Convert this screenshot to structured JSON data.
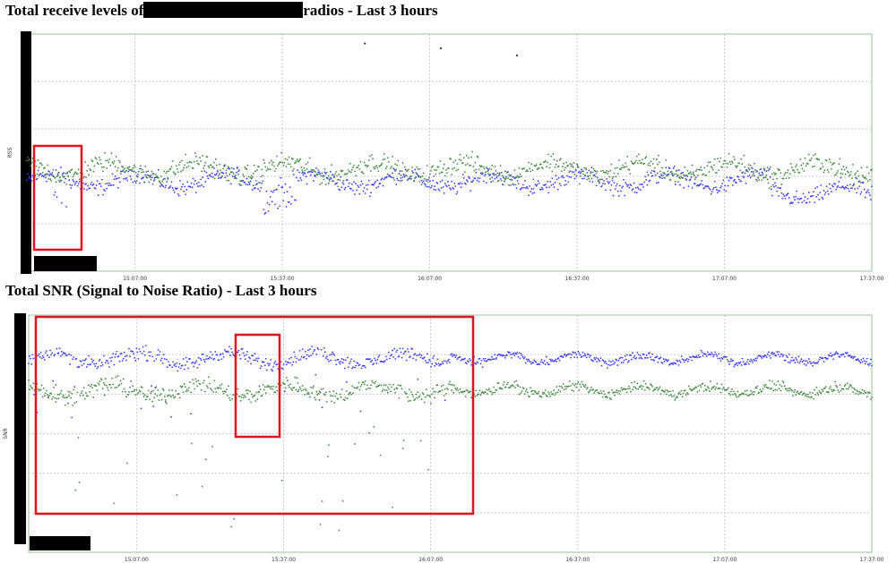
{
  "titles": {
    "chart1_prefix": "Total receive levels of",
    "chart1_suffix": "radios - Last 3 hours",
    "chart2": "Total SNR (Signal to Noise Ratio) - Last 3 hours"
  },
  "colors": {
    "series_blue": "#3a3aff",
    "series_green": "#3f8a3f",
    "highlight": "#e0141e",
    "grid": "#c8c8c8"
  },
  "chart_data": [
    {
      "type": "scatter",
      "title": "Total receive levels of radios - Last 3 hours",
      "ylabel": "RSS",
      "x_ticks": [
        "15:07:00",
        "15:37:00",
        "16:07:00",
        "16:37:00",
        "17:07:00",
        "17:37:00"
      ],
      "xlim": [
        "14:45:00",
        "17:37:00"
      ],
      "ylim": [
        0,
        5
      ],
      "grid": true,
      "series": [
        {
          "color": "blue",
          "level": 1.9,
          "spread": 0.25
        },
        {
          "color": "green",
          "level": 2.15,
          "spread": 0.3
        }
      ],
      "annotations": [
        "red box highlighting early dip"
      ]
    },
    {
      "type": "scatter",
      "title": "Total SNR (Signal to Noise Ratio) - Last 3 hours",
      "ylabel": "SNR",
      "x_ticks": [
        "15:07:00",
        "15:37:00",
        "16:07:00",
        "16:37:00",
        "17:07:00",
        "17:37:00"
      ],
      "xlim": [
        "14:45:00",
        "17:37:00"
      ],
      "ylim": [
        0,
        6
      ],
      "grid": true,
      "series": [
        {
          "color": "blue",
          "level": 4.9,
          "spread": 0.25
        },
        {
          "color": "green",
          "level": 4.1,
          "spread": 0.3
        }
      ],
      "annotations": [
        "large red box 14:45-16:13",
        "small red box around 15:32 dip"
      ]
    }
  ]
}
